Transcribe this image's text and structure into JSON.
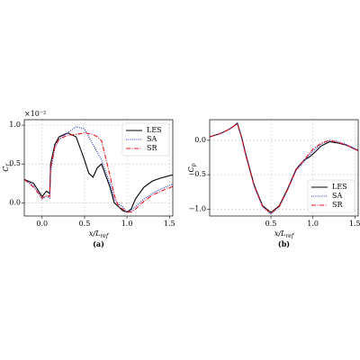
{
  "chart_data": [
    {
      "type": "line",
      "caption": "(a)",
      "ylabel": "C_f",
      "xlabel": "x/L_ref",
      "y_multiplier": "×10⁻²",
      "x": [
        -0.21,
        -0.1,
        0.0,
        0.05,
        0.09,
        0.1,
        0.15,
        0.2,
        0.3,
        0.4,
        0.5,
        0.55,
        0.6,
        0.65,
        0.7,
        0.8,
        0.85,
        0.9,
        0.95,
        1.0,
        1.05,
        1.1,
        1.2,
        1.3,
        1.4,
        1.54
      ],
      "series": [
        {
          "name": "LES",
          "color": "#000000",
          "dash": "solid",
          "values": [
            0.3,
            0.25,
            0.08,
            0.15,
            0.12,
            0.5,
            0.75,
            0.85,
            0.9,
            0.85,
            0.55,
            0.38,
            0.33,
            0.45,
            0.5,
            0.2,
            0.0,
            -0.05,
            -0.1,
            -0.12,
            -0.08,
            0.05,
            0.2,
            0.28,
            0.32,
            0.36
          ]
        },
        {
          "name": "SA",
          "color": "#1f2fd6",
          "dash": "dotted",
          "values": [
            0.3,
            0.22,
            0.05,
            0.08,
            0.06,
            0.4,
            0.7,
            0.82,
            0.9,
            0.98,
            0.95,
            0.85,
            0.75,
            0.65,
            0.55,
            0.25,
            0.05,
            -0.02,
            -0.05,
            -0.12,
            -0.1,
            -0.05,
            0.05,
            0.12,
            0.18,
            0.24
          ]
        },
        {
          "name": "SR",
          "color": "#e8141e",
          "dash": "dashdot",
          "values": [
            0.3,
            0.2,
            0.06,
            0.1,
            0.08,
            0.45,
            0.72,
            0.82,
            0.87,
            0.88,
            0.9,
            0.89,
            0.88,
            0.85,
            0.8,
            0.35,
            0.1,
            -0.05,
            -0.08,
            -0.12,
            -0.12,
            -0.08,
            0.02,
            0.1,
            0.15,
            0.21
          ]
        }
      ],
      "xlim": [
        -0.21,
        1.54
      ],
      "ylim": [
        -0.17,
        1.07
      ],
      "xticks": [
        {
          "value": 0,
          "label": "0.0"
        },
        {
          "value": 0.5,
          "label": "0.5"
        },
        {
          "value": 1,
          "label": "1.0"
        },
        {
          "value": 1.5,
          "label": "1.5"
        }
      ],
      "yticks": [
        {
          "value": 0,
          "label": "0.0"
        },
        {
          "value": 0.5,
          "label": "0.5"
        },
        {
          "value": 1,
          "label": "1.0"
        }
      ],
      "grid": true,
      "legend": "upper-right"
    },
    {
      "type": "line",
      "caption": "(b)",
      "ylabel": "C_p",
      "xlabel": "x/L_ref",
      "x": [
        -0.23,
        -0.1,
        0.0,
        0.05,
        0.1,
        0.15,
        0.2,
        0.3,
        0.4,
        0.5,
        0.6,
        0.7,
        0.8,
        0.9,
        0.95,
        1.0,
        1.1,
        1.2,
        1.3,
        1.4,
        1.54
      ],
      "series": [
        {
          "name": "LES",
          "color": "#000000",
          "dash": "solid",
          "values": [
            0.05,
            0.1,
            0.16,
            0.2,
            0.25,
            0.05,
            -0.2,
            -0.65,
            -0.95,
            -1.05,
            -0.95,
            -0.7,
            -0.42,
            -0.28,
            -0.25,
            -0.2,
            -0.08,
            -0.02,
            -0.04,
            -0.07,
            -0.15
          ]
        },
        {
          "name": "SA",
          "color": "#1f2fd6",
          "dash": "dotted",
          "values": [
            0.05,
            0.1,
            0.16,
            0.2,
            0.24,
            0.04,
            -0.22,
            -0.67,
            -0.97,
            -1.07,
            -0.97,
            -0.72,
            -0.44,
            -0.3,
            -0.22,
            -0.16,
            -0.05,
            0.0,
            -0.02,
            -0.06,
            -0.14
          ]
        },
        {
          "name": "SR",
          "color": "#e8141e",
          "dash": "dashdot",
          "values": [
            0.05,
            0.1,
            0.16,
            0.2,
            0.24,
            0.04,
            -0.22,
            -0.66,
            -0.96,
            -1.06,
            -0.96,
            -0.71,
            -0.43,
            -0.28,
            -0.2,
            -0.13,
            -0.04,
            0.0,
            -0.03,
            -0.07,
            -0.15
          ]
        }
      ],
      "xlim": [
        -0.23,
        1.54
      ],
      "ylim": [
        -1.1,
        0.3
      ],
      "xticks": [
        {
          "value": 0.5,
          "label": "0.5"
        },
        {
          "value": 1,
          "label": "1.0"
        },
        {
          "value": 1.5,
          "label": "1.5"
        }
      ],
      "yticks": [
        {
          "value": 0,
          "label": "0.0"
        },
        {
          "value": -0.5,
          "label": "−0.5"
        },
        {
          "value": -1,
          "label": "−1.0"
        }
      ],
      "grid": true,
      "legend": "lower-right"
    }
  ]
}
